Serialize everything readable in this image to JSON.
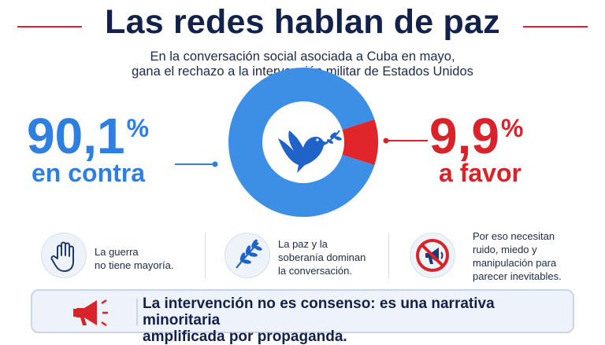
{
  "header": {
    "title": "Las redes hablan de paz",
    "subtitle_line1": "En la conversación social asociada a Cuba en mayo,",
    "subtitle_line2": "gana el rechazo a la intervención militar de Estados Unidos"
  },
  "stats": {
    "against_value": "90,1",
    "against_pct_sign": "%",
    "against_label": "en contra",
    "favor_value": "9,9",
    "favor_pct_sign": "%",
    "favor_label": "a favor"
  },
  "chart_data": {
    "type": "pie",
    "categories": [
      "en contra",
      "a favor"
    ],
    "values": [
      90.1,
      9.9
    ],
    "colors": [
      "#3d8fe6",
      "#e0252b"
    ],
    "center_icon": "dove-with-olive-branch-icon"
  },
  "cards": [
    {
      "icon": "raised-hand-icon",
      "lines": [
        "La guerra",
        "no tiene mayoría."
      ]
    },
    {
      "icon": "olive-branch-icon",
      "lines": [
        "La paz y la",
        "soberanía dominan",
        "la conversación."
      ]
    },
    {
      "icon": "no-megaphone-icon",
      "lines": [
        "Por eso necesitan",
        "ruido, miedo y",
        "manipulación para",
        "parecer inevitables."
      ]
    }
  ],
  "banner": {
    "icon": "megaphone-icon",
    "line1": "La intervención no es consenso: es una narrativa minoritaria",
    "line2": "amplificada por propaganda."
  },
  "colors": {
    "navy": "#13224a",
    "blue": "#2f7fe0",
    "red": "#d8232a"
  }
}
